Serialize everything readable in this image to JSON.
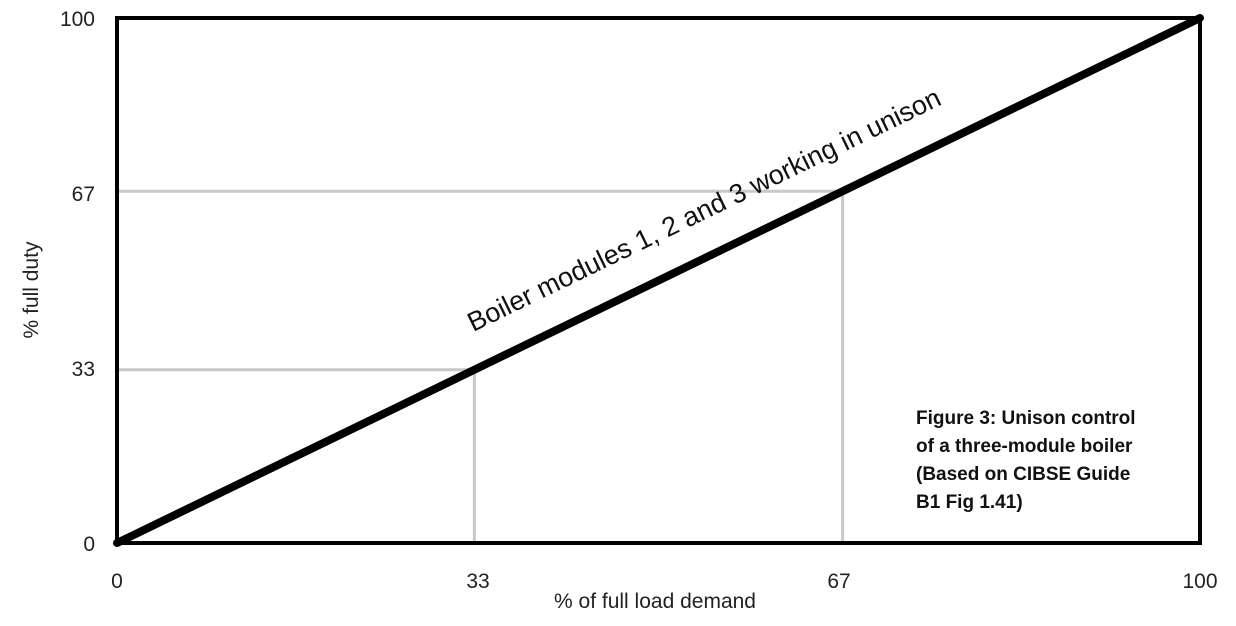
{
  "chart_data": {
    "type": "line",
    "xlabel": "% of full load demand",
    "ylabel": "% full duty",
    "xlim": [
      0,
      100
    ],
    "ylim": [
      0,
      100
    ],
    "x_ticks": [
      "0",
      "33",
      "67",
      "100"
    ],
    "y_ticks": [
      "0",
      "33",
      "67",
      "100"
    ],
    "series": [
      {
        "name": "Boiler modules 1, 2 and 3 working in unison",
        "x": [
          0,
          100
        ],
        "y": [
          0,
          100
        ]
      }
    ],
    "reference_lines": [
      {
        "x": 33,
        "y": 33
      },
      {
        "x": 67,
        "y": 67
      }
    ],
    "annotation": [
      "Figure 3: Unison control",
      "of a three-module boiler",
      "(Based on CIBSE Guide",
      "B1 Fig 1.41)"
    ],
    "grid": false,
    "colors": {
      "line": "#000000",
      "reference": "#c8c8c8",
      "frame": "#000000"
    }
  }
}
